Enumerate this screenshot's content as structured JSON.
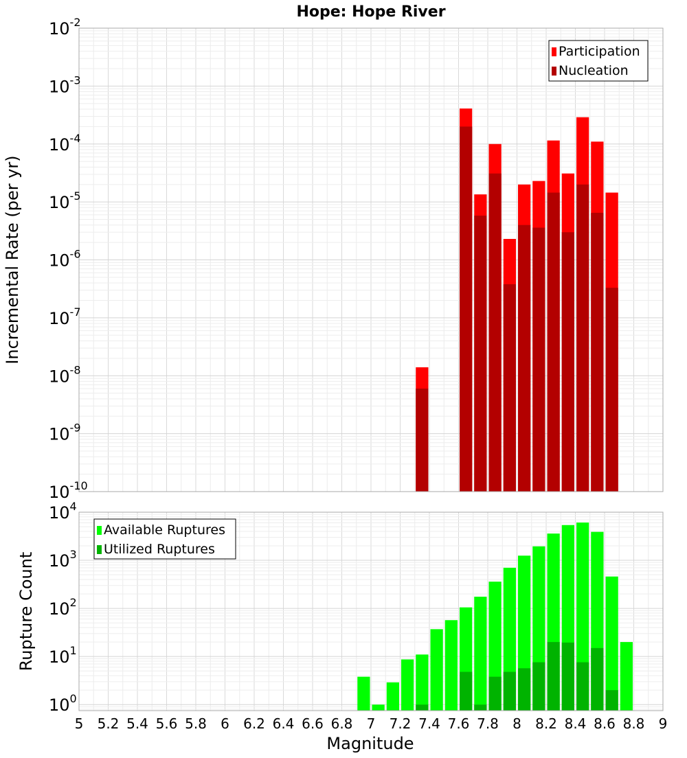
{
  "chart_data": [
    {
      "type": "bar",
      "title": "Hope: Hope River",
      "xlabel": "",
      "ylabel": "Incremental Rate (per yr)",
      "y_scale": "log",
      "ylim": [
        1e-10,
        0.01
      ],
      "xlim": [
        5,
        9
      ],
      "grid": true,
      "legend_position": "top-right",
      "y_tick_exponents": [
        -10,
        -9,
        -8,
        -7,
        -6,
        -5,
        -4,
        -3,
        -2
      ],
      "series": [
        {
          "name": "Participation",
          "color": "#ff0000",
          "x": [
            7.35,
            7.65,
            7.75,
            7.85,
            7.95,
            8.05,
            8.15,
            8.25,
            8.35,
            8.45,
            8.55,
            8.65
          ],
          "values": [
            1.4e-08,
            0.00041,
            1.35e-05,
            0.0001,
            2.3e-06,
            2e-05,
            2.3e-05,
            0.000115,
            3.1e-05,
            0.00029,
            0.00011,
            1.45e-05
          ]
        },
        {
          "name": "Nucleation",
          "color": "#b30000",
          "x": [
            7.35,
            7.65,
            7.75,
            7.85,
            7.95,
            8.05,
            8.15,
            8.25,
            8.35,
            8.45,
            8.55,
            8.65
          ],
          "values": [
            6e-09,
            0.0002,
            5.8e-06,
            3.1e-05,
            3.8e-07,
            4e-06,
            3.6e-06,
            1.45e-05,
            3e-06,
            2e-05,
            6.5e-06,
            3.3e-07
          ]
        }
      ]
    },
    {
      "type": "bar",
      "title": "",
      "xlabel": "Magnitude",
      "ylabel": "Rupture Count",
      "y_scale": "log",
      "ylim": [
        0.75,
        10000
      ],
      "xlim": [
        5,
        9
      ],
      "grid": true,
      "legend_position": "top-left",
      "y_tick_exponents": [
        0,
        1,
        2,
        3,
        4
      ],
      "x_ticks": [
        "5",
        "5.2",
        "5.4",
        "5.6",
        "5.8",
        "6",
        "6.2",
        "6.4",
        "6.6",
        "6.8",
        "7",
        "7.2",
        "7.4",
        "7.6",
        "7.8",
        "8",
        "8.2",
        "8.4",
        "8.6",
        "8.8",
        "9"
      ],
      "series": [
        {
          "name": "Available Ruptures",
          "color": "#00ff00",
          "x": [
            6.95,
            7.05,
            7.15,
            7.25,
            7.35,
            7.45,
            7.55,
            7.65,
            7.75,
            7.85,
            7.95,
            8.05,
            8.15,
            8.25,
            8.35,
            8.45,
            8.55,
            8.65,
            8.75
          ],
          "values": [
            3.8,
            1.0,
            2.9,
            8.7,
            11,
            37,
            57,
            105,
            175,
            360,
            700,
            1250,
            1950,
            3600,
            5400,
            6100,
            3900,
            460,
            20
          ]
        },
        {
          "name": "Utilized Ruptures",
          "color": "#00b300",
          "x": [
            7.35,
            7.65,
            7.75,
            7.85,
            7.95,
            8.05,
            8.15,
            8.25,
            8.35,
            8.45,
            8.55,
            8.65
          ],
          "values": [
            1.0,
            4.8,
            1.0,
            3.8,
            4.8,
            5.7,
            7.6,
            20,
            19.5,
            7.6,
            15,
            2.0
          ]
        }
      ]
    }
  ]
}
